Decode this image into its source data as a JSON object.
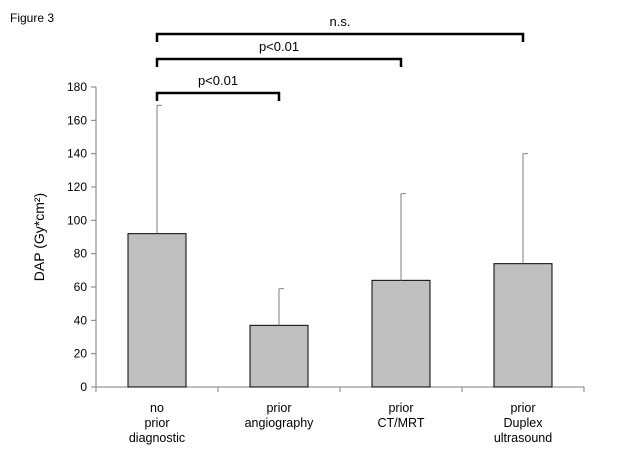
{
  "figure_label": "Figure 3",
  "chart_data": {
    "type": "bar",
    "title": "",
    "xlabel": "",
    "ylabel": "DAP (Gy*cm²)",
    "ylim": [
      0,
      180
    ],
    "yticks": [
      0,
      20,
      40,
      60,
      80,
      100,
      120,
      140,
      160,
      180
    ],
    "categories": [
      [
        "no",
        "prior",
        "diagnostic"
      ],
      [
        "prior",
        "angiography"
      ],
      [
        "prior",
        "CT/MRT"
      ],
      [
        "prior",
        "Duplex",
        "ultrasound"
      ]
    ],
    "values": [
      92,
      37,
      64,
      74
    ],
    "error_upper": [
      169,
      59,
      116,
      140
    ],
    "grid": false,
    "bar_color": "#bfbfbf",
    "significance": [
      {
        "from": 0,
        "to": 1,
        "label": "p<0.01"
      },
      {
        "from": 0,
        "to": 2,
        "label": "p<0.01"
      },
      {
        "from": 0,
        "to": 3,
        "label": "n.s."
      }
    ]
  }
}
